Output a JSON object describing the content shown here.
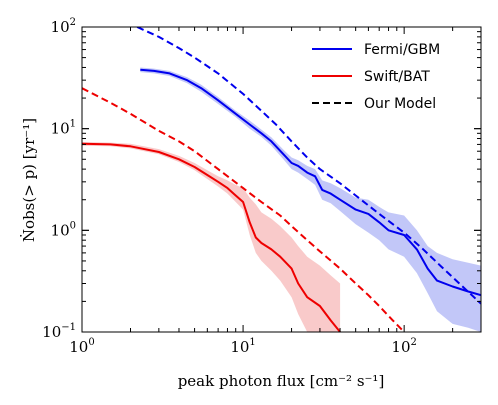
{
  "chart_data": {
    "type": "line",
    "xscale": "log",
    "yscale": "log",
    "xlim": [
      1,
      300
    ],
    "ylim": [
      0.1,
      100
    ],
    "xlabel": "peak photon flux [cm⁻² s⁻¹]",
    "ylabel": "Ṅobs(> p) [yr⁻¹]",
    "x_tick_labels": [
      {
        "value": 1,
        "label": "10",
        "sup": "0"
      },
      {
        "value": 10,
        "label": "10",
        "sup": "1"
      },
      {
        "value": 100,
        "label": "10",
        "sup": "2"
      }
    ],
    "y_tick_labels": [
      {
        "value": 0.1,
        "label": "10",
        "sup": "−1"
      },
      {
        "value": 1,
        "label": "10",
        "sup": "0"
      },
      {
        "value": 10,
        "label": "10",
        "sup": "1"
      },
      {
        "value": 100,
        "label": "10",
        "sup": "2"
      }
    ],
    "legend": {
      "position": "top-right",
      "entries": [
        {
          "label": "Fermi/GBM",
          "color": "#0000ee",
          "style": "solid"
        },
        {
          "label": "Swift/BAT",
          "color": "#ee0000",
          "style": "solid"
        },
        {
          "label": "Our Model",
          "color": "#000000",
          "style": "dashed"
        }
      ]
    },
    "series": [
      {
        "name": "Fermi/GBM",
        "color": "#0000ee",
        "style": "solid",
        "x": [
          2.3,
          2.8,
          3.5,
          4.5,
          5.5,
          7,
          9,
          11,
          13,
          15,
          18,
          20,
          22,
          25,
          28,
          31,
          35,
          40,
          50,
          60,
          70,
          80,
          100,
          120,
          140,
          160,
          200,
          250,
          300
        ],
        "y": [
          38,
          37,
          35,
          30,
          25,
          19,
          14,
          11,
          9,
          7.5,
          5.5,
          4.6,
          4.3,
          3.7,
          3.4,
          2.5,
          2.3,
          2.0,
          1.6,
          1.45,
          1.2,
          1.0,
          0.9,
          0.65,
          0.42,
          0.32,
          0.28,
          0.25,
          0.23
        ],
        "band_low": [
          36,
          35,
          33,
          28,
          23,
          17.5,
          13,
          10,
          8.3,
          6.8,
          4.9,
          4.0,
          3.7,
          3.2,
          2.8,
          2.0,
          1.85,
          1.55,
          1.15,
          0.95,
          0.8,
          0.65,
          0.55,
          0.38,
          0.24,
          0.16,
          0.12,
          0.11,
          0.1
        ],
        "band_high": [
          40,
          39,
          37,
          32,
          27,
          20.5,
          15,
          12,
          9.8,
          8.2,
          6.1,
          5.2,
          4.9,
          4.3,
          4.0,
          3.1,
          2.9,
          2.6,
          2.1,
          2.0,
          1.7,
          1.5,
          1.4,
          1.0,
          0.7,
          0.6,
          0.52,
          0.48,
          0.45
        ]
      },
      {
        "name": "Fermi/GBM model",
        "color": "#0000ee",
        "style": "dashed",
        "x": [
          2.2,
          3,
          4,
          5,
          7,
          10,
          13,
          16,
          20,
          25,
          30,
          40,
          50,
          70,
          100,
          130,
          170,
          220,
          300
        ],
        "y": [
          100,
          80,
          62,
          50,
          35,
          22,
          15,
          11,
          7.5,
          5.2,
          4.0,
          2.9,
          2.2,
          1.45,
          0.95,
          0.66,
          0.44,
          0.3,
          0.19
        ]
      },
      {
        "name": "Swift/BAT",
        "color": "#ee0000",
        "style": "solid",
        "x": [
          1,
          1.5,
          2,
          3,
          4,
          5,
          6,
          7,
          8,
          9,
          10,
          11,
          12,
          13,
          15,
          17,
          20,
          22,
          25,
          30,
          35,
          40
        ],
        "y": [
          7.1,
          7.0,
          6.7,
          5.9,
          5.0,
          4.2,
          3.5,
          3.0,
          2.6,
          2.2,
          1.9,
          1.2,
          0.85,
          0.75,
          0.65,
          0.55,
          0.42,
          0.3,
          0.22,
          0.18,
          0.13,
          0.1
        ],
        "band_low": [
          6.8,
          6.7,
          6.4,
          5.6,
          4.7,
          3.9,
          3.2,
          2.7,
          2.3,
          1.9,
          1.6,
          0.9,
          0.6,
          0.5,
          0.4,
          0.32,
          0.22,
          0.15,
          0.1,
          0.1,
          0.1,
          0.1
        ],
        "band_high": [
          7.4,
          7.3,
          7.1,
          6.3,
          5.4,
          4.6,
          3.9,
          3.4,
          3.1,
          2.8,
          2.6,
          2.1,
          1.8,
          1.5,
          1.3,
          1.1,
          0.85,
          0.7,
          0.55,
          0.45,
          0.36,
          0.3
        ]
      },
      {
        "name": "Swift/BAT model",
        "color": "#ee0000",
        "style": "dashed",
        "x": [
          1,
          1.5,
          2,
          3,
          4,
          5,
          7,
          10,
          13,
          17,
          20,
          25,
          30,
          40,
          50,
          60,
          70,
          85,
          100
        ],
        "y": [
          25,
          18,
          14,
          9.5,
          7.5,
          6.0,
          4.0,
          2.6,
          1.9,
          1.4,
          1.1,
          0.8,
          0.62,
          0.42,
          0.3,
          0.23,
          0.18,
          0.13,
          0.1
        ]
      }
    ]
  }
}
